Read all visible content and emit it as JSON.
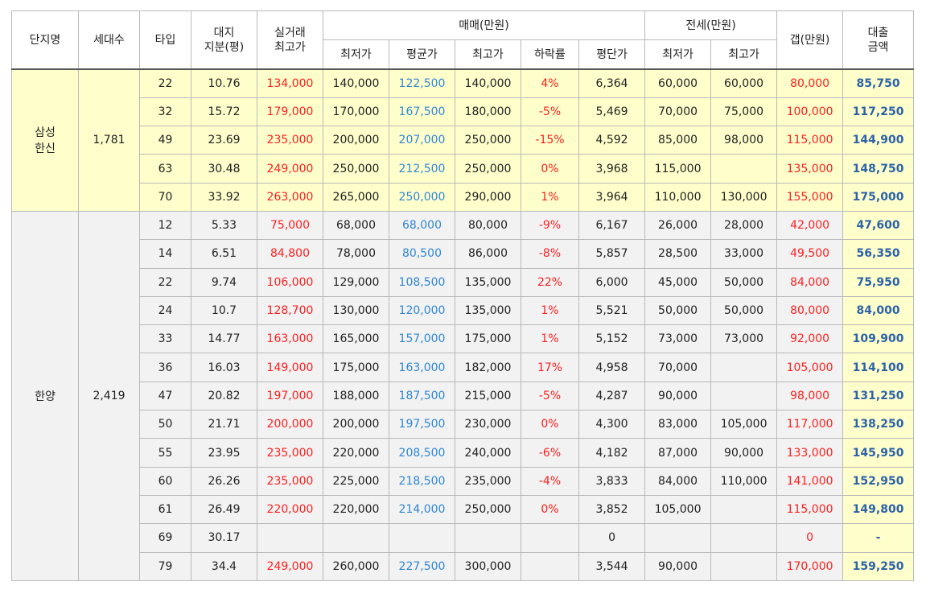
{
  "headers": {
    "complex": "단지명",
    "households": "세대수",
    "type": "타입",
    "land_share_l1": "대지",
    "land_share_l2": "지분(평)",
    "actual_l1": "실거래",
    "actual_l2": "최고가",
    "sale_group": "매매(만원)",
    "sale_min": "최저가",
    "sale_avg": "평균가",
    "sale_max": "최고가",
    "drop_rate": "하락률",
    "per_pyeong": "평단가",
    "jeonse_group": "전세(만원)",
    "jeonse_min": "최저가",
    "jeonse_max": "최고가",
    "gap": "갭(만원)",
    "loan_l1": "대출",
    "loan_l2": "금액"
  },
  "groups": [
    {
      "name_l1": "삼성",
      "name_l2": "한신",
      "households": "1,781",
      "rows": [
        {
          "type": "22",
          "land": "10.76",
          "actual": "134,000",
          "smin": "140,000",
          "savg": "122,500",
          "smax": "140,000",
          "rate": "4%",
          "pp": "6,364",
          "jmin": "60,000",
          "jmax": "60,000",
          "gap": "80,000",
          "loan": "85,750"
        },
        {
          "type": "32",
          "land": "15.72",
          "actual": "179,000",
          "smin": "170,000",
          "savg": "167,500",
          "smax": "180,000",
          "rate": "-5%",
          "pp": "5,469",
          "jmin": "70,000",
          "jmax": "75,000",
          "gap": "100,000",
          "loan": "117,250"
        },
        {
          "type": "49",
          "land": "23.69",
          "actual": "235,000",
          "smin": "200,000",
          "savg": "207,000",
          "smax": "250,000",
          "rate": "-15%",
          "pp": "4,592",
          "jmin": "85,000",
          "jmax": "98,000",
          "gap": "115,000",
          "loan": "144,900"
        },
        {
          "type": "63",
          "land": "30.48",
          "actual": "249,000",
          "smin": "250,000",
          "savg": "212,500",
          "smax": "250,000",
          "rate": "0%",
          "pp": "3,968",
          "jmin": "115,000",
          "jmax": "",
          "gap": "135,000",
          "loan": "148,750"
        },
        {
          "type": "70",
          "land": "33.92",
          "actual": "263,000",
          "smin": "265,000",
          "savg": "250,000",
          "smax": "290,000",
          "rate": "1%",
          "pp": "3,964",
          "jmin": "110,000",
          "jmax": "130,000",
          "gap": "155,000",
          "loan": "175,000"
        }
      ]
    },
    {
      "name_l1": "한양",
      "name_l2": "",
      "households": "2,419",
      "rows": [
        {
          "type": "12",
          "land": "5.33",
          "actual": "75,000",
          "smin": "68,000",
          "savg": "68,000",
          "smax": "80,000",
          "rate": "-9%",
          "pp": "6,167",
          "jmin": "26,000",
          "jmax": "28,000",
          "gap": "42,000",
          "loan": "47,600"
        },
        {
          "type": "14",
          "land": "6.51",
          "actual": "84,800",
          "smin": "78,000",
          "savg": "80,500",
          "smax": "86,000",
          "rate": "-8%",
          "pp": "5,857",
          "jmin": "28,500",
          "jmax": "33,000",
          "gap": "49,500",
          "loan": "56,350"
        },
        {
          "type": "22",
          "land": "9.74",
          "actual": "106,000",
          "smin": "129,000",
          "savg": "108,500",
          "smax": "135,000",
          "rate": "22%",
          "pp": "6,000",
          "jmin": "45,000",
          "jmax": "50,000",
          "gap": "84,000",
          "loan": "75,950"
        },
        {
          "type": "24",
          "land": "10.7",
          "actual": "128,700",
          "smin": "130,000",
          "savg": "120,000",
          "smax": "135,000",
          "rate": "1%",
          "pp": "5,521",
          "jmin": "50,000",
          "jmax": "50,000",
          "gap": "80,000",
          "loan": "84,000"
        },
        {
          "type": "33",
          "land": "14.77",
          "actual": "163,000",
          "smin": "165,000",
          "savg": "157,000",
          "smax": "175,000",
          "rate": "1%",
          "pp": "5,152",
          "jmin": "73,000",
          "jmax": "73,000",
          "gap": "92,000",
          "loan": "109,900"
        },
        {
          "type": "36",
          "land": "16.03",
          "actual": "149,000",
          "smin": "175,000",
          "savg": "163,000",
          "smax": "182,000",
          "rate": "17%",
          "pp": "4,958",
          "jmin": "70,000",
          "jmax": "",
          "gap": "105,000",
          "loan": "114,100"
        },
        {
          "type": "47",
          "land": "20.82",
          "actual": "197,000",
          "smin": "188,000",
          "savg": "187,500",
          "smax": "215,000",
          "rate": "-5%",
          "pp": "4,287",
          "jmin": "90,000",
          "jmax": "",
          "gap": "98,000",
          "loan": "131,250"
        },
        {
          "type": "50",
          "land": "21.71",
          "actual": "200,000",
          "smin": "200,000",
          "savg": "197,500",
          "smax": "230,000",
          "rate": "0%",
          "pp": "4,300",
          "jmin": "83,000",
          "jmax": "105,000",
          "gap": "117,000",
          "loan": "138,250"
        },
        {
          "type": "55",
          "land": "23.95",
          "actual": "235,000",
          "smin": "220,000",
          "savg": "208,500",
          "smax": "240,000",
          "rate": "-6%",
          "pp": "4,182",
          "jmin": "87,000",
          "jmax": "90,000",
          "gap": "133,000",
          "loan": "145,950"
        },
        {
          "type": "60",
          "land": "26.26",
          "actual": "235,000",
          "smin": "225,000",
          "savg": "218,500",
          "smax": "235,000",
          "rate": "-4%",
          "pp": "3,833",
          "jmin": "84,000",
          "jmax": "110,000",
          "gap": "141,000",
          "loan": "152,950"
        },
        {
          "type": "61",
          "land": "26.49",
          "actual": "220,000",
          "smin": "220,000",
          "savg": "214,000",
          "smax": "250,000",
          "rate": "0%",
          "pp": "3,852",
          "jmin": "105,000",
          "jmax": "",
          "gap": "115,000",
          "loan": "149,800"
        },
        {
          "type": "69",
          "land": "30.17",
          "actual": "",
          "smin": "",
          "savg": "",
          "smax": "",
          "rate": "",
          "pp": "0",
          "jmin": "",
          "jmax": "",
          "gap": "0",
          "loan": "-"
        },
        {
          "type": "79",
          "land": "34.4",
          "actual": "249,000",
          "smin": "260,000",
          "savg": "227,500",
          "smax": "300,000",
          "rate": "",
          "pp": "3,544",
          "jmin": "90,000",
          "jmax": "",
          "gap": "170,000",
          "loan": "159,250"
        }
      ]
    }
  ]
}
